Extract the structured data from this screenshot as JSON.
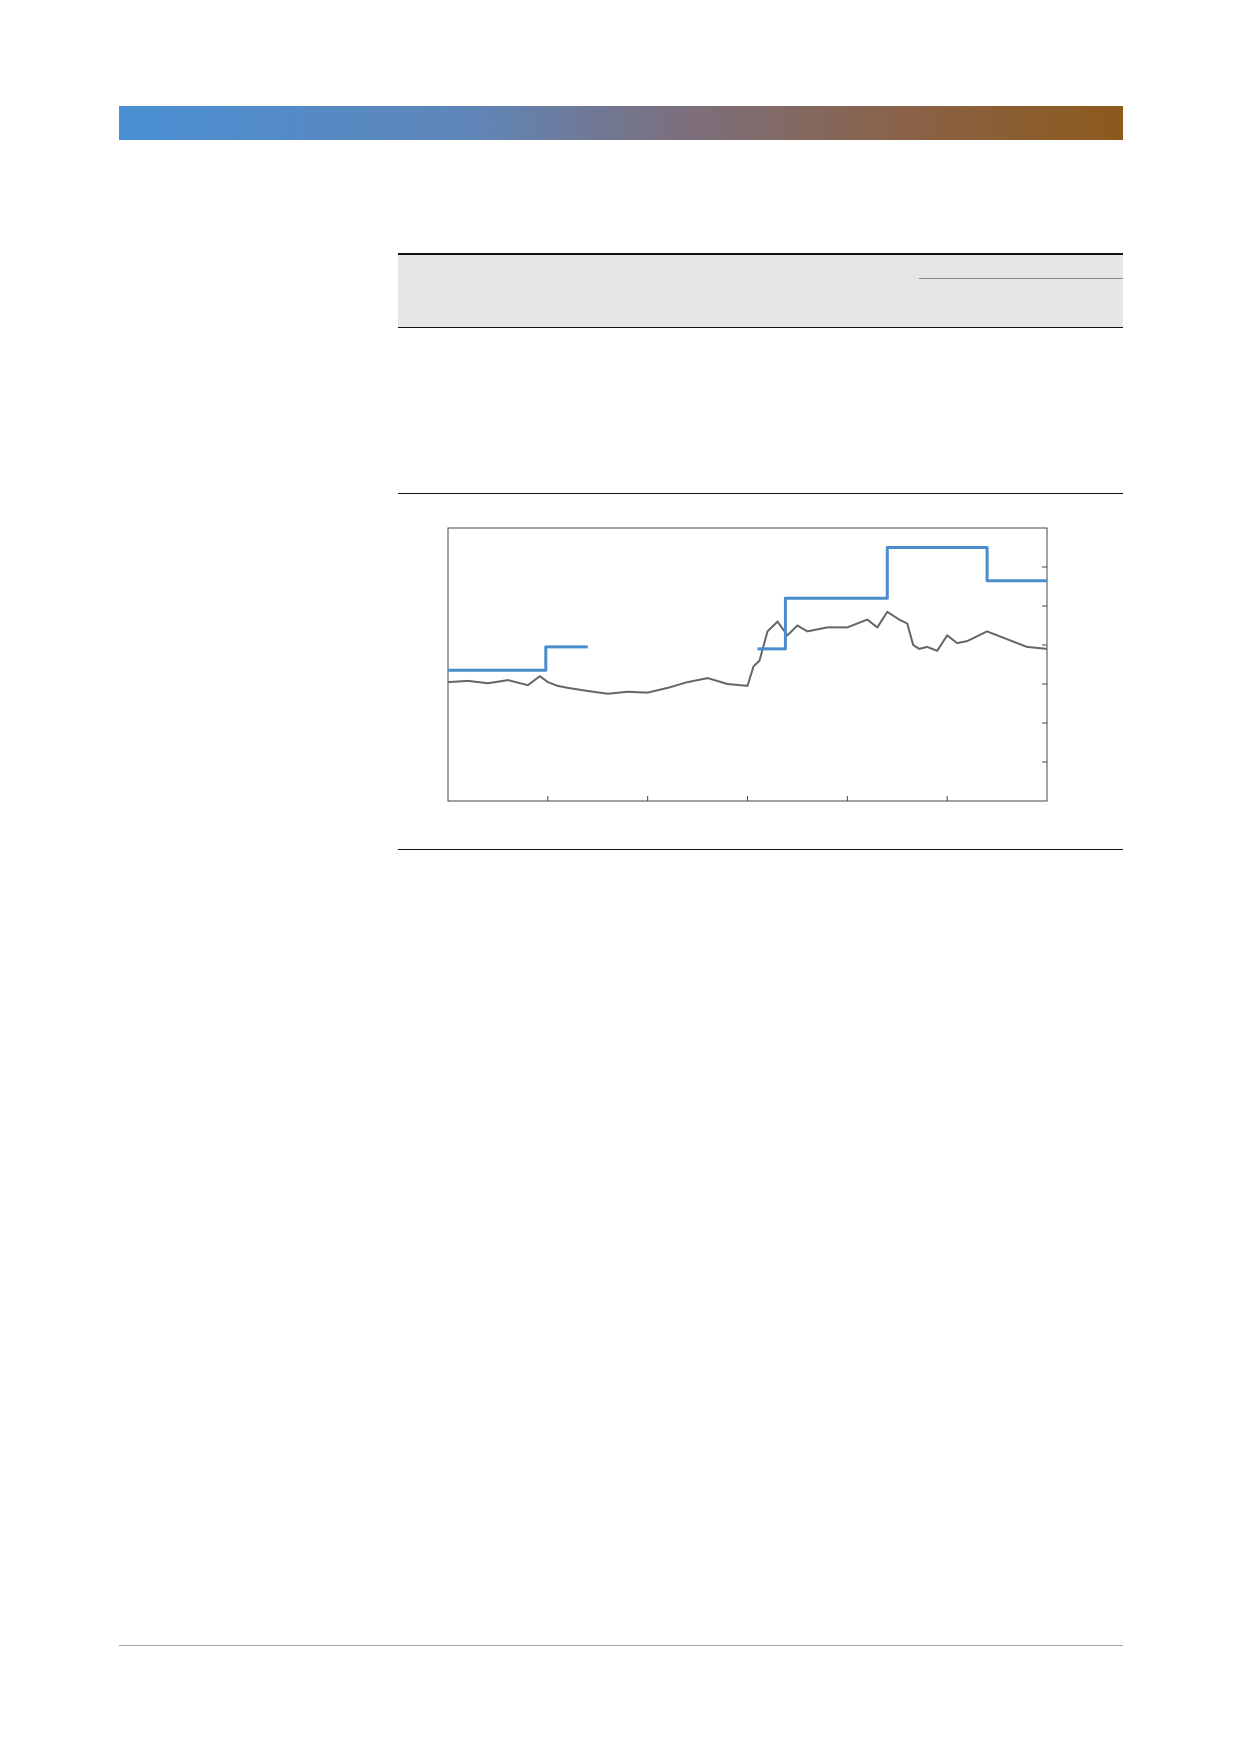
{
  "colors": {
    "band_start": "#4a90d4",
    "band_end": "#8c5a1c",
    "table_header_bg": "#e6e6e6",
    "price_line": "#666666",
    "target_line": "#4a8ccc"
  },
  "chart_data": {
    "type": "line",
    "grid": false,
    "legend": "none",
    "xlim": [
      0,
      300
    ],
    "ylim": [
      0,
      7
    ],
    "x_ticks": [
      0,
      50,
      100,
      150,
      200,
      250,
      300
    ],
    "y_ticks": [
      1,
      2,
      3,
      4,
      5,
      6
    ],
    "series": [
      {
        "role": "price",
        "color": "#666666",
        "x": [
          0,
          10,
          20,
          30,
          40,
          46,
          50,
          55,
          60,
          70,
          80,
          90,
          100,
          110,
          120,
          130,
          140,
          150,
          153,
          156,
          160,
          165,
          170,
          175,
          180,
          190,
          200,
          210,
          215,
          220,
          226,
          230,
          233,
          236,
          240,
          245,
          250,
          255,
          260,
          270,
          280,
          290,
          300
        ],
        "y": [
          3.05,
          3.08,
          3.02,
          3.1,
          2.97,
          3.2,
          3.05,
          2.95,
          2.9,
          2.82,
          2.75,
          2.8,
          2.78,
          2.9,
          3.05,
          3.15,
          3.0,
          2.95,
          3.45,
          3.6,
          4.35,
          4.6,
          4.25,
          4.5,
          4.35,
          4.45,
          4.45,
          4.65,
          4.45,
          4.85,
          4.65,
          4.55,
          4.0,
          3.9,
          3.95,
          3.85,
          4.25,
          4.05,
          4.1,
          4.35,
          4.15,
          3.95,
          3.9
        ]
      },
      {
        "role": "target",
        "color": "#4a8ccc",
        "x": [
          0,
          49,
          49,
          70
        ],
        "y": [
          3.35,
          3.35,
          3.95,
          3.95
        ]
      },
      {
        "role": "target",
        "color": "#4a8ccc",
        "x": [
          155,
          169,
          169,
          220,
          220,
          270,
          270,
          300
        ],
        "y": [
          3.9,
          3.9,
          5.2,
          5.2,
          6.5,
          6.5,
          5.65,
          5.65
        ]
      }
    ]
  }
}
